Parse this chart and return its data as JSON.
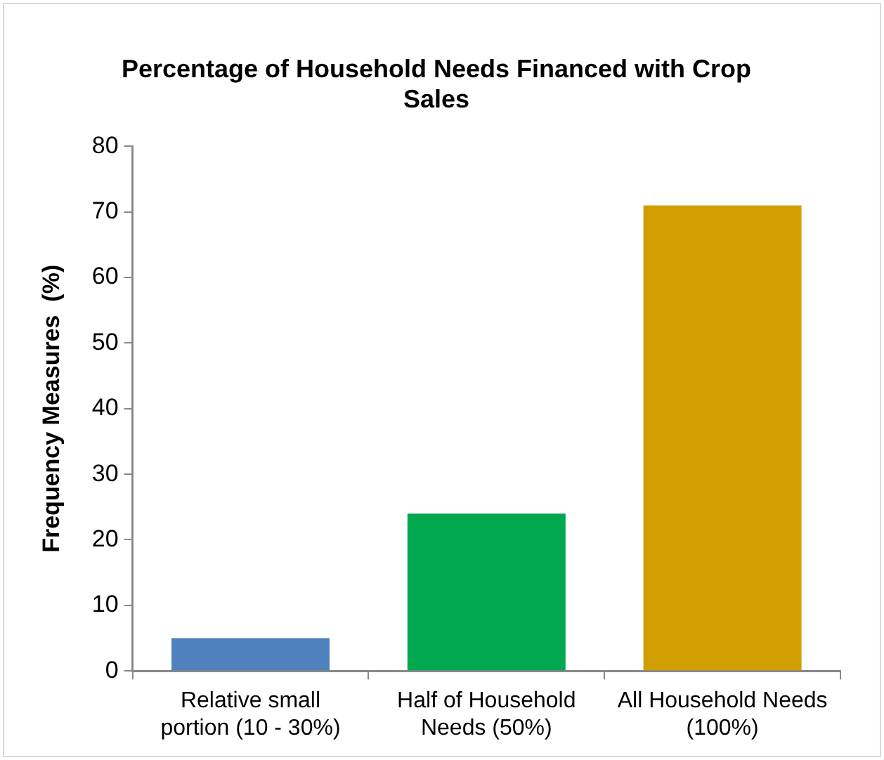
{
  "chart_data": {
    "type": "bar",
    "title": "Percentage of Household Needs Financed with Crop Sales",
    "ylabel": "Frequency Measures  (%)",
    "categories": [
      "Relative small portion (10 - 30%)",
      "Half of Household Needs (50%)",
      "All Household Needs (100%)"
    ],
    "values": [
      5,
      24,
      71
    ],
    "colors": [
      "#4f81bd",
      "#00a84f",
      "#d09e00"
    ],
    "ylim": [
      0,
      80
    ],
    "yticks": [
      0,
      10,
      20,
      30,
      40,
      50,
      60,
      70,
      80
    ],
    "grid": false,
    "legend": false
  }
}
